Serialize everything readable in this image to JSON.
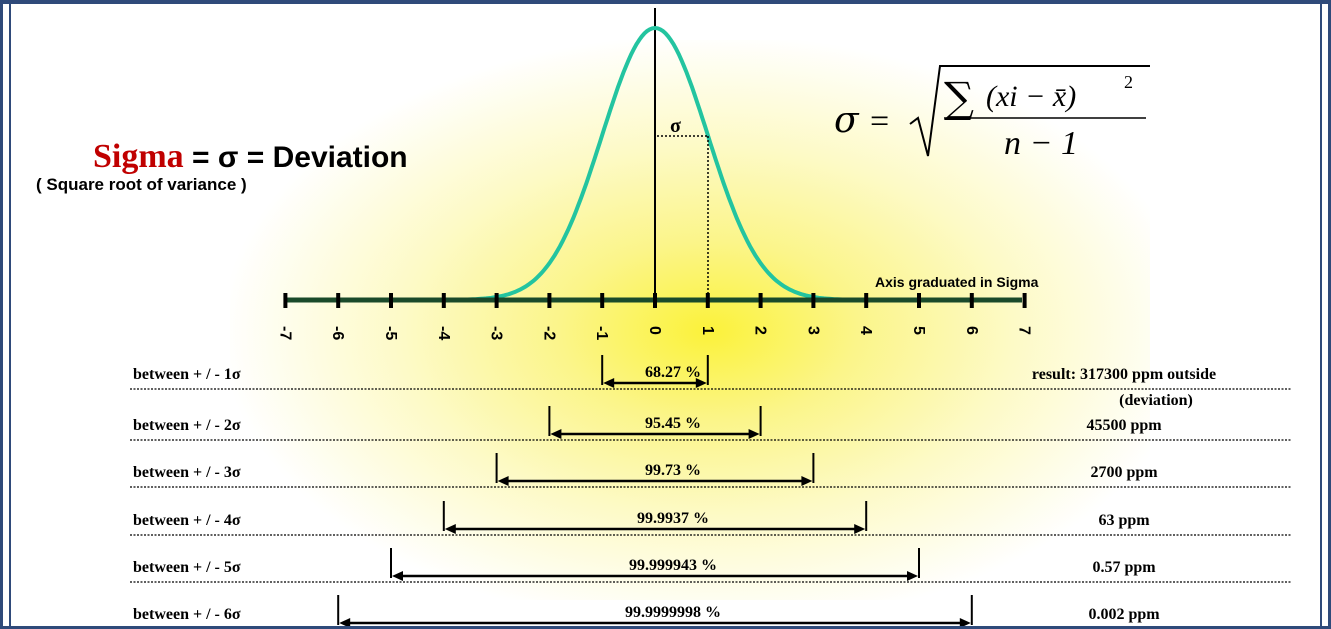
{
  "title": {
    "word_red": "Sigma",
    "rest": " = σ = Deviation",
    "subtitle": "( Square root of variance )"
  },
  "formula": {
    "lhs": "σ",
    "equals": "=",
    "sum": "∑",
    "numerator": "(xi − x̄)",
    "exponent": "2",
    "denominator": "n − 1"
  },
  "curve_label": "σ",
  "axis": {
    "label": "Axis graduated in Sigma",
    "ticks": [
      "-7",
      "-6",
      "-5",
      "-4",
      "-3",
      "-2",
      "-1",
      "0",
      "1",
      "2",
      "3",
      "4",
      "5",
      "6",
      "7"
    ],
    "colors": {
      "axis": "#1a4a2a",
      "curve": "#23c4a0",
      "tick": "#000000"
    }
  },
  "rows": [
    {
      "label": "between + / - 1σ",
      "sigma": 1,
      "percent": "68.27 %",
      "result": "result:  317300  ppm outside",
      "result_note": "(deviation)"
    },
    {
      "label": "between  + / - 2σ",
      "sigma": 2,
      "percent": "95.45 %",
      "result": "45500  ppm",
      "result_note": ""
    },
    {
      "label": "between  + / - 3σ",
      "sigma": 3,
      "percent": "99.73 %",
      "result": "2700  ppm",
      "result_note": ""
    },
    {
      "label": "between  + / - 4σ",
      "sigma": 4,
      "percent": "99.9937 %",
      "result": "63  ppm",
      "result_note": ""
    },
    {
      "label": "between  + / - 5σ",
      "sigma": 5,
      "percent": "99.999943 %",
      "result": "0.57  ppm",
      "result_note": ""
    },
    {
      "label": "between  + / - 6σ",
      "sigma": 6,
      "percent": "99.9999998 %",
      "result": "0.002  ppm",
      "result_note": ""
    }
  ]
}
